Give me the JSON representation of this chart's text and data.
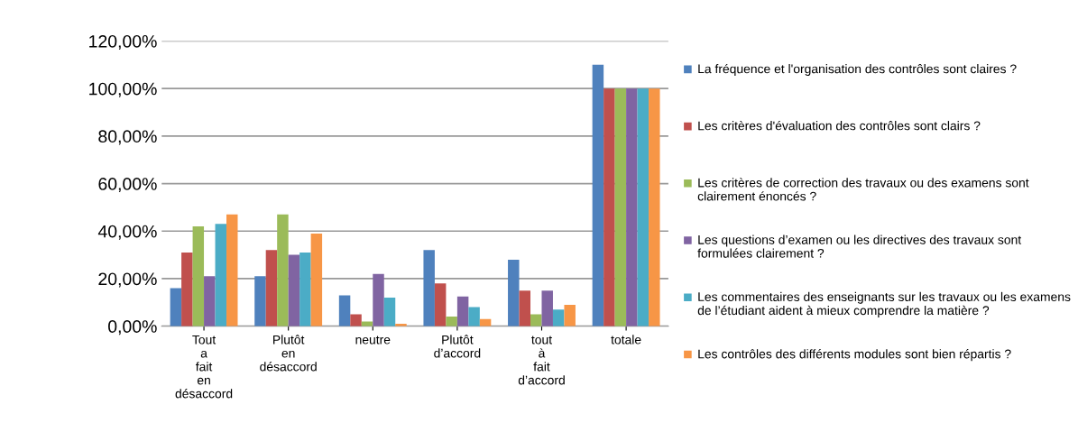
{
  "chart_data": {
    "type": "bar",
    "categories": [
      "Tout a fait en désaccord",
      "Plutôt en désaccord",
      "neutre",
      "Plutôt d’accord",
      "tout à fait d’accord",
      "totale"
    ],
    "series": [
      {
        "name": "La fréquence et l'organisation des contrôles sont claires ?",
        "color": "#4f81bd",
        "values": [
          16,
          21,
          13,
          32,
          28,
          110
        ]
      },
      {
        "name": "Les critères d'évaluation des contrôles sont clairs ?",
        "color": "#c0504d",
        "values": [
          31,
          32,
          5,
          18,
          15,
          100
        ]
      },
      {
        "name": "Les critères de correction des travaux ou des examens sont clairement énoncés ?",
        "color": "#9bbb59",
        "values": [
          42,
          47,
          2,
          4,
          5,
          100
        ]
      },
      {
        "name": "Les questions d’examen ou les directives des travaux sont formulées clairement ?",
        "color": "#8064a2",
        "values": [
          21,
          30,
          22,
          12.5,
          15,
          100
        ]
      },
      {
        "name": "Les commentaires des enseignants sur les travaux ou les examens de l’étudiant aident à mieux comprendre la matière ?",
        "color": "#4bacc6",
        "values": [
          43,
          31,
          12,
          8,
          7,
          100
        ]
      },
      {
        "name": "Les contrôles des différents modules sont bien répartis ?",
        "color": "#f79646",
        "values": [
          47,
          39,
          1,
          3,
          9,
          100
        ]
      }
    ],
    "ylim": [
      0,
      120
    ],
    "yticks": [
      {
        "value": 0,
        "label": "0,00%"
      },
      {
        "value": 20,
        "label": "20,00%"
      },
      {
        "value": 40,
        "label": "40,00%"
      },
      {
        "value": 60,
        "label": "60,00%"
      },
      {
        "value": 80,
        "label": "80,00%"
      },
      {
        "value": 100,
        "label": "100,00%"
      },
      {
        "value": 120,
        "label": "120,00%"
      }
    ],
    "grid": "y",
    "legend": "right"
  }
}
